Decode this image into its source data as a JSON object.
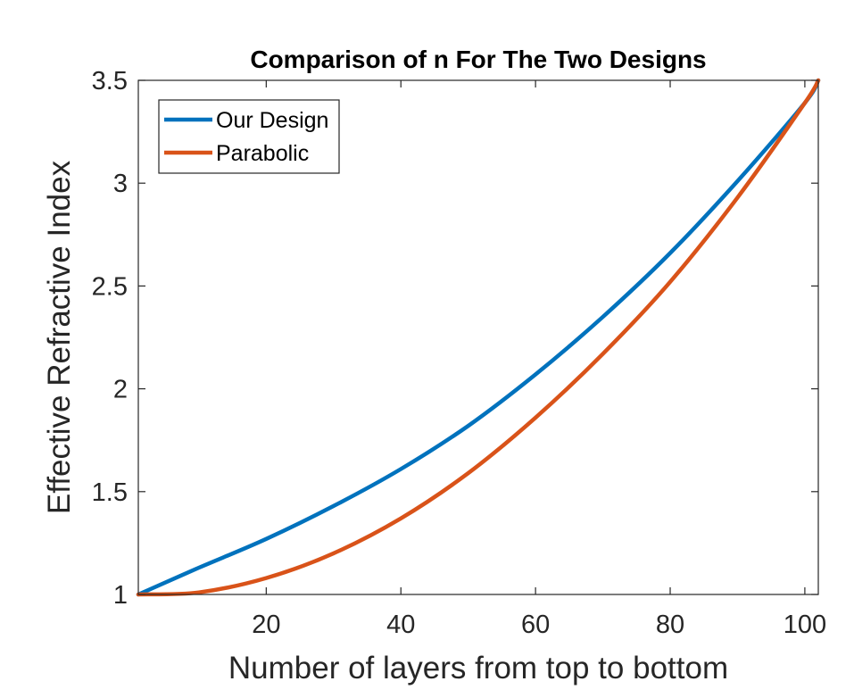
{
  "chart_data": {
    "type": "line",
    "title": "Comparison of n For The Two Designs",
    "xlabel": "Number of layers from top to bottom",
    "ylabel": "Effective Refractive Index",
    "xlim": [
      1,
      102
    ],
    "ylim": [
      1,
      3.5
    ],
    "xticks": [
      20,
      40,
      60,
      80,
      100
    ],
    "xtick_labels": [
      "20",
      "40",
      "60",
      "80",
      "100"
    ],
    "yticks": [
      1,
      1.5,
      2,
      2.5,
      3,
      3.5
    ],
    "ytick_labels": [
      "1",
      "1.5",
      "2",
      "2.5",
      "3",
      "3.5"
    ],
    "grid": false,
    "legend_position": "top-left",
    "x": [
      1,
      10,
      20,
      30,
      40,
      50,
      60,
      70,
      80,
      90,
      100,
      102
    ],
    "series": [
      {
        "name": "Our Design",
        "color": "#0072BD",
        "values": [
          1.0,
          1.13,
          1.27,
          1.43,
          1.61,
          1.82,
          2.07,
          2.35,
          2.66,
          3.01,
          3.39,
          3.5
        ]
      },
      {
        "name": "Parabolic",
        "color": "#D95319",
        "values": [
          1.0,
          1.01,
          1.08,
          1.2,
          1.37,
          1.59,
          1.86,
          2.17,
          2.52,
          2.93,
          3.39,
          3.5
        ]
      }
    ]
  }
}
